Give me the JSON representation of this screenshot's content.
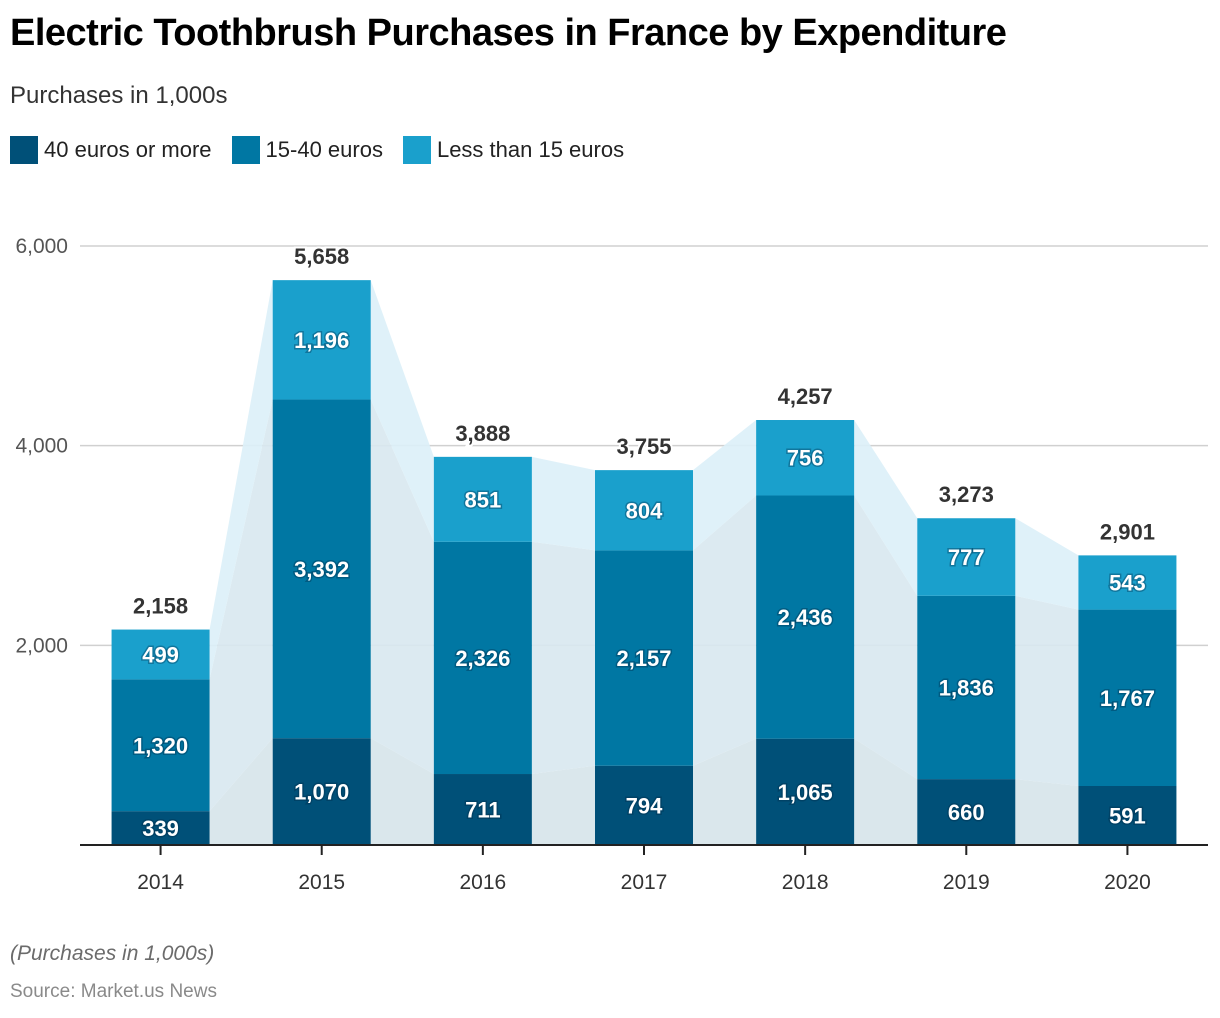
{
  "header": {
    "title": "Electric Toothbrush Purchases in France by Expenditure",
    "subtitle": "Purchases in 1,000s"
  },
  "legend": [
    {
      "label": "40 euros or more",
      "color": "#005078"
    },
    {
      "label": "15-40 euros",
      "color": "#0077a3"
    },
    {
      "label": "Less than 15 euros",
      "color": "#1aa0cc"
    }
  ],
  "footer": {
    "note": "(Purchases in 1,000s)",
    "source": "Source: Market.us News"
  },
  "chart_data": {
    "type": "bar",
    "stacked": true,
    "title": "Electric Toothbrush Purchases in France by Expenditure",
    "subtitle": "Purchases in 1,000s",
    "xlabel": "",
    "ylabel": "",
    "categories": [
      "2014",
      "2015",
      "2016",
      "2017",
      "2018",
      "2019",
      "2020"
    ],
    "series": [
      {
        "name": "40 euros or more",
        "color": "#005078",
        "values": [
          339,
          1070,
          711,
          794,
          1065,
          660,
          591
        ]
      },
      {
        "name": "15-40 euros",
        "color": "#0077a3",
        "values": [
          1320,
          3392,
          2326,
          2157,
          2436,
          1836,
          1767
        ]
      },
      {
        "name": "Less than 15 euros",
        "color": "#1aa0cc",
        "values": [
          499,
          1196,
          851,
          804,
          756,
          777,
          543
        ]
      }
    ],
    "totals": [
      2158,
      5658,
      3888,
      3755,
      4257,
      3273,
      2901
    ],
    "ylim": [
      0,
      6000
    ],
    "yticks": [
      2000,
      4000,
      6000
    ],
    "ytick_labels": [
      "2,000",
      "4,000",
      "6,000"
    ],
    "grid": true,
    "legend_position": "top-left",
    "connector_areas": true
  }
}
